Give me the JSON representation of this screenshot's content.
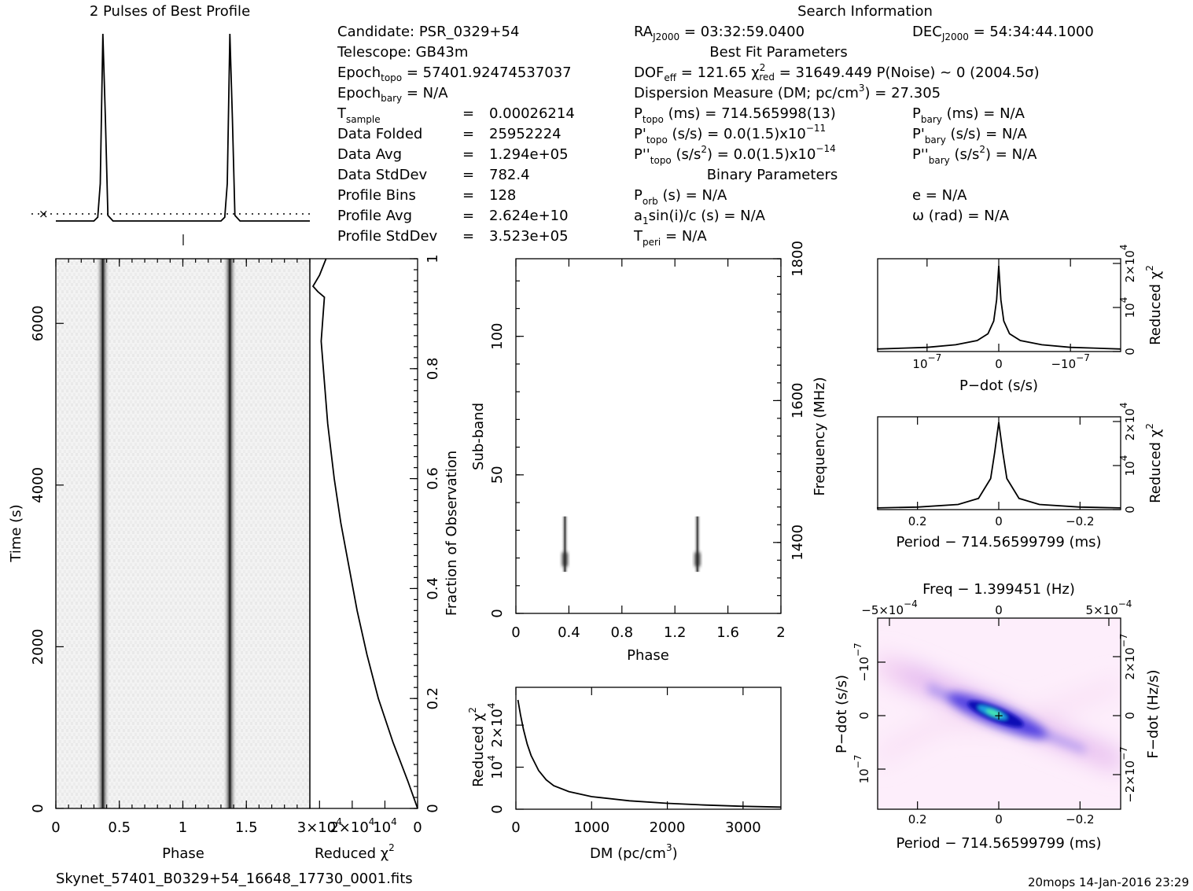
{
  "header": {
    "profile_title": "2 Pulses of Best Profile",
    "search_title": "Search Information",
    "best_fit_title": "Best Fit Parameters",
    "binary_title": "Binary Parameters"
  },
  "search_info": {
    "candidate": "PSR_0329+54",
    "telescope": "GB43m",
    "epoch_topo": "57401.92474537037",
    "epoch_bary": "N/A",
    "t_sample": "0.00026214",
    "data_folded": "25952224",
    "data_avg": "1.294e+05",
    "data_stddev": "782.4",
    "profile_bins": "128",
    "profile_avg": "2.624e+10",
    "profile_stddev": "3.523e+05",
    "ra_j2000": "03:32:59.0400",
    "dec_j2000": "54:34:44.1000"
  },
  "best_fit": {
    "dof_eff": "121.65",
    "chi2_red": "31649.449",
    "p_noise": "~ 0",
    "sigma": "(2004.5σ)",
    "dm": "27.305",
    "p_topo_ms": "714.565998(13)",
    "p_bary_ms": "N/A",
    "pd_topo": "0.0(1.5)x10",
    "pd_topo_exp": "−11",
    "pd_bary": "N/A",
    "pdd_topo": "0.0(1.5)x10",
    "pdd_topo_exp": "−14",
    "pdd_bary": "N/A"
  },
  "binary": {
    "p_orb": "N/A",
    "a1sini": "N/A",
    "t_peri": "N/A",
    "e": "N/A",
    "omega": "N/A"
  },
  "footer": {
    "filename": "Skynet_57401_B0329+54_16648_17730_0001.fits",
    "stamp": "20mops 14-Jan-2016 23:29"
  },
  "chart_data": [
    {
      "type": "line",
      "name": "profile",
      "title": "2 Pulses of Best Profile",
      "x": [
        0,
        0.3,
        0.33,
        0.35,
        0.37,
        0.39,
        0.41,
        0.45,
        1.0,
        1.3,
        1.33,
        1.35,
        1.37,
        1.39,
        1.41,
        1.45,
        2.0
      ],
      "y": [
        0,
        0,
        0.02,
        0.2,
        1.0,
        0.55,
        0.03,
        0,
        0,
        0,
        0.02,
        0.2,
        1.0,
        0.55,
        0.03,
        0,
        0
      ],
      "pulse_phases": [
        0.37,
        1.37
      ]
    },
    {
      "type": "heatmap",
      "name": "time-phase",
      "xlabel": "Phase",
      "ylabel": "Time (s)",
      "xlim": [
        0,
        2
      ],
      "ylim": [
        0,
        6800
      ],
      "xticks": [
        "0",
        "0.5",
        "1",
        "1.5"
      ],
      "yticks": [
        "0",
        "2000",
        "4000",
        "6000"
      ],
      "pulse_phases": [
        0.37,
        1.37
      ]
    },
    {
      "type": "line",
      "name": "reduced-chi2-vs-time",
      "xlabel": "Reduced χ",
      "ylabel": "Fraction of Observation",
      "xticks": [
        "3×10",
        "2×10",
        "10",
        "0"
      ],
      "xtick_exps": [
        "4",
        "4",
        "4",
        ""
      ],
      "yticks": [
        "0",
        "0.2",
        "0.4",
        "0.6",
        "0.8",
        "1"
      ],
      "x": [
        0,
        3000,
        7500,
        12000,
        15500,
        18500,
        21000,
        23500,
        25500,
        27500,
        29500,
        28500,
        30500,
        32000,
        30000,
        28000
      ],
      "y": [
        0,
        0.05,
        0.12,
        0.2,
        0.28,
        0.36,
        0.44,
        0.52,
        0.6,
        0.7,
        0.85,
        0.93,
        0.94,
        0.95,
        0.97,
        1.0
      ]
    },
    {
      "type": "heatmap",
      "name": "subband-phase",
      "xlabel": "Phase",
      "ylabel": "Sub-band",
      "ylabel_right": "Frequency (MHz)",
      "xlim": [
        0,
        2
      ],
      "ylim": [
        0,
        128
      ],
      "xticks": [
        "0",
        "0.4",
        "0.8",
        "1.2",
        "1.6",
        "2"
      ],
      "yticks": [
        "0",
        "50",
        "100"
      ],
      "yticks_right": [
        "1400",
        "1600",
        "1800"
      ],
      "signal_band": [
        15,
        35
      ],
      "pulse_phases": [
        0.37,
        1.37
      ]
    },
    {
      "type": "line",
      "name": "chi2-vs-dm",
      "xlabel": "DM (pc/cm",
      "ylabel": "Reduced χ",
      "xticks": [
        "0",
        "1000",
        "2000",
        "3000"
      ],
      "yticks": [
        "0",
        "10",
        "2×10"
      ],
      "ytick_exps": [
        "",
        "4",
        "4"
      ],
      "xlim": [
        0,
        3500
      ],
      "ylim": [
        0,
        29000
      ],
      "x": [
        27,
        60,
        100,
        150,
        200,
        300,
        400,
        500,
        700,
        1000,
        1500,
        2000,
        2500,
        3000,
        3500
      ],
      "y": [
        26000,
        22500,
        19000,
        15500,
        12800,
        9200,
        7000,
        5600,
        4200,
        3000,
        2000,
        1400,
        1000,
        700,
        500
      ]
    },
    {
      "type": "line",
      "name": "chi2-vs-pdot",
      "xlabel": "P−dot (s/s)",
      "ylabel": "Reduced χ",
      "xticks": [
        "10",
        "0",
        "−10"
      ],
      "xtick_exps": [
        "−7",
        "",
        "−7"
      ],
      "x": [
        -1.7,
        -1.0,
        -0.6,
        -0.3,
        -0.15,
        -0.07,
        -0.03,
        0,
        0.03,
        0.07,
        0.15,
        0.3,
        0.6,
        1.0,
        1.7
      ],
      "y": [
        0.02,
        0.04,
        0.07,
        0.12,
        0.2,
        0.35,
        0.6,
        1.0,
        0.6,
        0.35,
        0.2,
        0.12,
        0.07,
        0.04,
        0.02
      ]
    },
    {
      "type": "line",
      "name": "chi2-vs-period",
      "xlabel": "Period − 714.56599799 (ms)",
      "ylabel": "Reduced χ",
      "xticks": [
        "0.2",
        "0",
        "−0.2"
      ],
      "x": [
        0.3,
        0.2,
        0.1,
        0.05,
        0.02,
        0.01,
        0,
        -0.01,
        -0.02,
        -0.05,
        -0.1,
        -0.2,
        -0.3
      ],
      "y": [
        0.01,
        0.02,
        0.05,
        0.12,
        0.35,
        0.65,
        1.0,
        0.65,
        0.35,
        0.12,
        0.05,
        0.02,
        0.01
      ]
    },
    {
      "type": "heatmap",
      "name": "period-pdot",
      "title": "Freq − 1.399451 (Hz)",
      "xlabel": "Period − 714.56599799 (ms)",
      "ylabel": "P−dot (s/s)",
      "ylabel_right": "F−dot (Hz/s)",
      "xticks": [
        "0.2",
        "0",
        "−0.2"
      ],
      "xticks_top": [
        "−5×10",
        "0",
        "5×10"
      ],
      "xticks_top_exps": [
        "−4",
        "",
        "−4"
      ],
      "yticks": [
        "10",
        "0",
        "−10"
      ],
      "ytick_exps": [
        "−7",
        "",
        "−7"
      ],
      "yticks_right": [
        "−2×10",
        "0",
        "2×10"
      ],
      "yticks_right_exps": [
        "−7",
        "",
        "−7"
      ]
    }
  ]
}
